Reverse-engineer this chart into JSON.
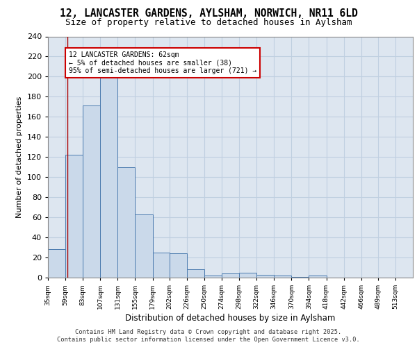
{
  "title_line1": "12, LANCASTER GARDENS, AYLSHAM, NORWICH, NR11 6LD",
  "title_line2": "Size of property relative to detached houses in Aylsham",
  "xlabel": "Distribution of detached houses by size in Aylsham",
  "ylabel": "Number of detached properties",
  "bin_edges": [
    35,
    59,
    83,
    107,
    131,
    155,
    179,
    202,
    226,
    250,
    274,
    298,
    322,
    346,
    370,
    394,
    418,
    442,
    466,
    489,
    513,
    537
  ],
  "bar_heights": [
    28,
    122,
    171,
    202,
    110,
    63,
    25,
    24,
    8,
    2,
    4,
    5,
    3,
    2,
    1,
    2,
    0,
    0,
    0,
    0,
    0
  ],
  "bar_color": "#cad9ea",
  "bar_edge_color": "#4a7aaf",
  "grid_color": "#bfcfe0",
  "background_color": "#dde6f0",
  "vline_x": 62,
  "vline_color": "#aa0000",
  "annotation_text_line1": "12 LANCASTER GARDENS: 62sqm",
  "annotation_text_line2": "← 5% of detached houses are smaller (38)",
  "annotation_text_line3": "95% of semi-detached houses are larger (721) →",
  "footnote": "Contains HM Land Registry data © Crown copyright and database right 2025.\nContains public sector information licensed under the Open Government Licence v3.0.",
  "ylim": [
    0,
    240
  ],
  "yticks": [
    0,
    20,
    40,
    60,
    80,
    100,
    120,
    140,
    160,
    180,
    200,
    220,
    240
  ],
  "tick_labels": [
    "35sqm",
    "59sqm",
    "83sqm",
    "107sqm",
    "131sqm",
    "155sqm",
    "179sqm",
    "202sqm",
    "226sqm",
    "250sqm",
    "274sqm",
    "298sqm",
    "322sqm",
    "346sqm",
    "370sqm",
    "394sqm",
    "418sqm",
    "442sqm",
    "466sqm",
    "489sqm",
    "513sqm"
  ]
}
